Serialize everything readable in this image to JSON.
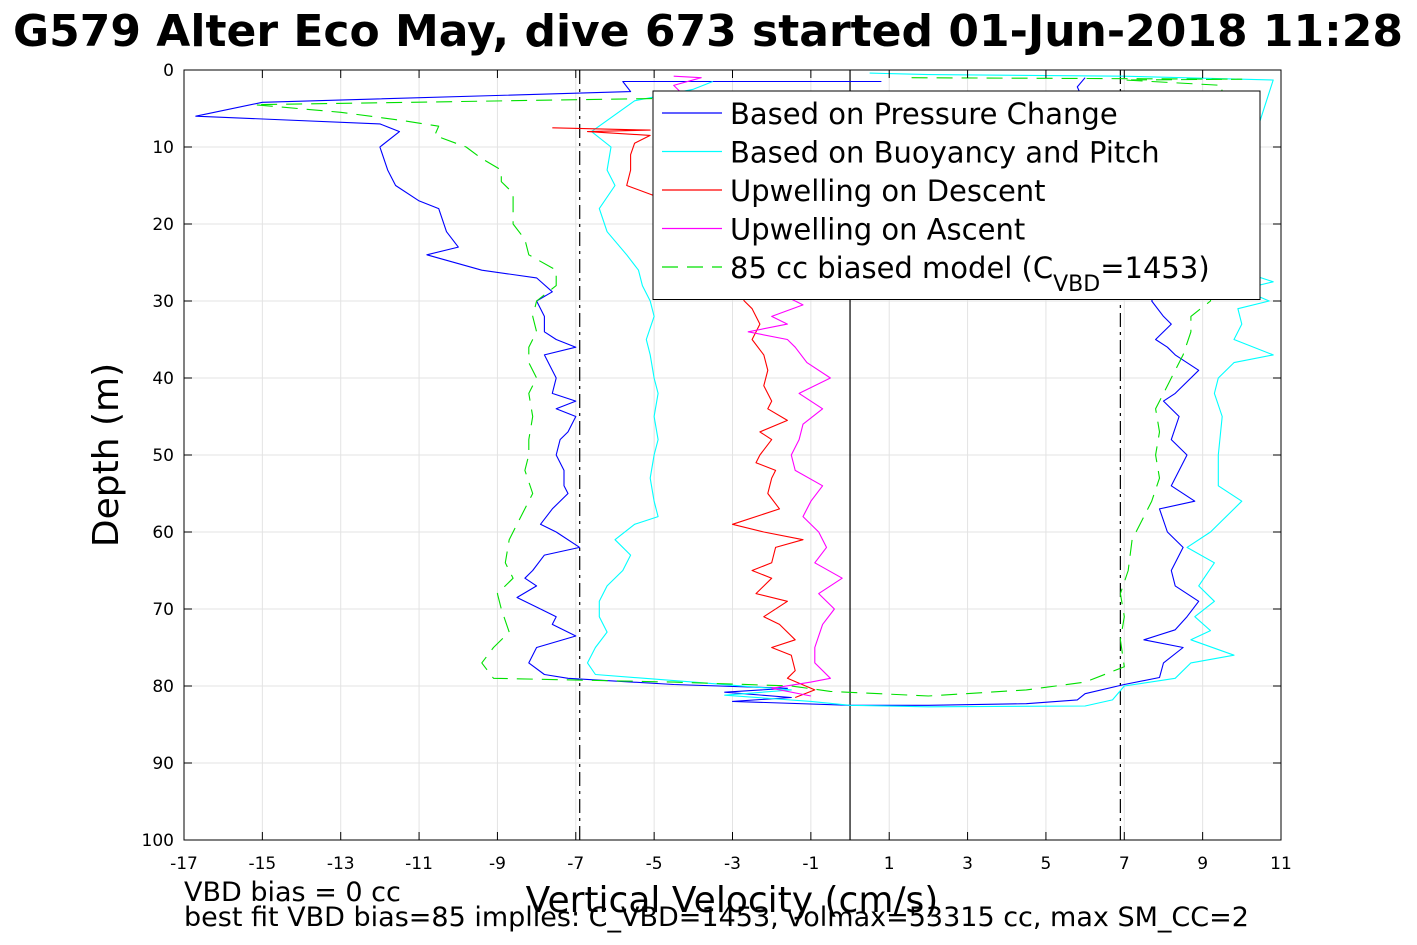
{
  "chart_data": {
    "type": "line",
    "title": "G579 Alter Eco May, dive 673 started 01-Jun-2018 11:28",
    "xlabel": "Vertical Velocity (cm/s)",
    "ylabel": "Depth (m)",
    "xlim": [
      -17,
      11
    ],
    "ylim": [
      0,
      100
    ],
    "y_reversed": true,
    "grid": true,
    "xticks": [
      -17,
      -15,
      -13,
      -11,
      -9,
      -7,
      -5,
      -3,
      -1,
      1,
      3,
      5,
      7,
      9,
      11
    ],
    "yticks": [
      0,
      10,
      20,
      30,
      40,
      50,
      60,
      70,
      80,
      90,
      100
    ],
    "legend_position": "top-right",
    "reference_lines": [
      {
        "x": -6.9,
        "style": "dashdot",
        "color": "#000000"
      },
      {
        "x": 0,
        "style": "solid",
        "color": "#000000"
      },
      {
        "x": 6.9,
        "style": "dashdot",
        "color": "#000000"
      }
    ],
    "series": [
      {
        "name": "Based on Pressure Change",
        "color": "#0000ff",
        "dash": "",
        "points": [
          [
            0.8,
            1.5
          ],
          [
            -5.8,
            1.5
          ],
          [
            -5.6,
            2.8
          ],
          [
            -15,
            4.2
          ],
          [
            -16.7,
            6
          ],
          [
            -12,
            7
          ],
          [
            -11.5,
            8
          ],
          [
            -12,
            10
          ],
          [
            -11.8,
            13
          ],
          [
            -11.6,
            15
          ],
          [
            -11,
            17
          ],
          [
            -10.5,
            18
          ],
          [
            -10.3,
            21
          ],
          [
            -10,
            23
          ],
          [
            -10.8,
            24
          ],
          [
            -9.4,
            26
          ],
          [
            -8,
            27
          ],
          [
            -7.6,
            28.8
          ],
          [
            -8,
            30
          ],
          [
            -7.8,
            32
          ],
          [
            -7.8,
            34
          ],
          [
            -7.5,
            35
          ],
          [
            -7,
            36
          ],
          [
            -7.8,
            37
          ],
          [
            -7.5,
            40
          ],
          [
            -7.6,
            42
          ],
          [
            -7,
            43
          ],
          [
            -7.5,
            44
          ],
          [
            -7,
            45
          ],
          [
            -7.2,
            47
          ],
          [
            -7.4,
            48
          ],
          [
            -7.5,
            50
          ],
          [
            -7.3,
            52
          ],
          [
            -7.3,
            54
          ],
          [
            -7.2,
            55
          ],
          [
            -7.6,
            57
          ],
          [
            -7.9,
            59
          ],
          [
            -7.5,
            60
          ],
          [
            -6.9,
            62
          ],
          [
            -7.8,
            63
          ],
          [
            -8.1,
            65
          ],
          [
            -8.3,
            66
          ],
          [
            -8.0,
            67
          ],
          [
            -8.5,
            68.5
          ],
          [
            -7.9,
            70
          ],
          [
            -7.5,
            71
          ],
          [
            -7.6,
            72
          ],
          [
            -7,
            73.5
          ],
          [
            -8,
            75
          ],
          [
            -8.2,
            77
          ],
          [
            -7.8,
            78.5
          ],
          [
            -7.2,
            79
          ],
          [
            -4.5,
            79.8
          ],
          [
            -1.6,
            80.3
          ],
          [
            -3.2,
            80.8
          ],
          [
            -1.5,
            81.5
          ],
          [
            -3,
            82
          ],
          [
            0,
            82.5
          ],
          [
            2,
            82.5
          ],
          [
            4.5,
            82.3
          ],
          [
            5.8,
            81.8
          ],
          [
            6,
            81
          ],
          [
            7,
            79.8
          ],
          [
            7.9,
            78.9
          ],
          [
            8,
            77
          ],
          [
            8.5,
            75
          ],
          [
            7.5,
            74
          ],
          [
            8.3,
            72.7
          ],
          [
            8.6,
            71
          ],
          [
            8.9,
            69
          ],
          [
            8.3,
            67
          ],
          [
            8.2,
            65
          ],
          [
            8.5,
            62
          ],
          [
            8.1,
            60
          ],
          [
            7.9,
            57
          ],
          [
            8.8,
            56
          ],
          [
            8.2,
            54
          ],
          [
            8.6,
            50
          ],
          [
            8.2,
            48
          ],
          [
            8.4,
            45
          ],
          [
            8.0,
            43
          ],
          [
            8.3,
            42
          ],
          [
            8.9,
            39
          ],
          [
            8.3,
            37
          ],
          [
            8.1,
            36
          ],
          [
            7.8,
            35
          ],
          [
            8.2,
            33
          ],
          [
            8.0,
            32
          ],
          [
            7.7,
            30
          ],
          [
            8,
            27
          ],
          [
            5.8,
            2.2
          ],
          [
            6,
            1
          ]
        ]
      },
      {
        "name": "Based on Buoyancy and Pitch",
        "color": "#00ffff",
        "dash": "",
        "points": [
          [
            -3.5,
            1.5
          ],
          [
            -4,
            2.5
          ],
          [
            -5.5,
            4
          ],
          [
            -6.6,
            8
          ],
          [
            -6.1,
            10
          ],
          [
            -6.2,
            13
          ],
          [
            -6.0,
            15
          ],
          [
            -6.4,
            18
          ],
          [
            -6.2,
            21
          ],
          [
            -5.7,
            24
          ],
          [
            -5.4,
            26
          ],
          [
            -5.3,
            28
          ],
          [
            -5.1,
            30
          ],
          [
            -5.0,
            32
          ],
          [
            -5.2,
            35
          ],
          [
            -5.1,
            37
          ],
          [
            -5.0,
            40
          ],
          [
            -4.9,
            42
          ],
          [
            -5.0,
            45
          ],
          [
            -4.9,
            48
          ],
          [
            -5.0,
            50
          ],
          [
            -5.1,
            53
          ],
          [
            -5.0,
            56
          ],
          [
            -4.9,
            58
          ],
          [
            -5.5,
            59
          ],
          [
            -6.0,
            61
          ],
          [
            -5.6,
            63
          ],
          [
            -5.8,
            65
          ],
          [
            -6.2,
            67
          ],
          [
            -6.4,
            69
          ],
          [
            -6.4,
            71
          ],
          [
            -6.2,
            73
          ],
          [
            -6.5,
            75
          ],
          [
            -6.7,
            77
          ],
          [
            -6.5,
            78.5
          ],
          [
            -4,
            79.5
          ],
          [
            -1.5,
            80.5
          ],
          [
            -3.2,
            81.2
          ],
          [
            -1,
            82
          ],
          [
            0,
            82.5
          ],
          [
            2,
            82.7
          ],
          [
            6,
            82.6
          ],
          [
            6.7,
            81.8
          ],
          [
            7.0,
            80
          ],
          [
            8.3,
            79
          ],
          [
            8.7,
            77
          ],
          [
            9.8,
            76
          ],
          [
            8.7,
            74
          ],
          [
            9.2,
            72.8
          ],
          [
            8.8,
            71
          ],
          [
            9.3,
            69
          ],
          [
            8.9,
            67
          ],
          [
            9.3,
            64
          ],
          [
            8.6,
            62
          ],
          [
            9.2,
            60
          ],
          [
            10.0,
            56
          ],
          [
            9.4,
            54
          ],
          [
            9.4,
            50
          ],
          [
            9.5,
            45
          ],
          [
            9.3,
            42
          ],
          [
            9.4,
            40
          ],
          [
            9.8,
            38
          ],
          [
            10.8,
            37
          ],
          [
            9.8,
            35
          ],
          [
            10.0,
            33
          ],
          [
            9.9,
            31
          ],
          [
            10.7,
            30
          ],
          [
            10,
            28.5
          ],
          [
            10.8,
            27.5
          ],
          [
            9.3,
            25
          ],
          [
            10.8,
            1.3
          ],
          [
            7,
            0.8
          ],
          [
            2,
            0.6
          ],
          [
            0.5,
            0.4
          ]
        ]
      },
      {
        "name": "Upwelling on Descent",
        "color": "#ff0000",
        "dash": "",
        "points": [
          [
            -7.6,
            7.5
          ],
          [
            -5.1,
            7.8
          ],
          [
            -6.7,
            8
          ],
          [
            -5.1,
            8.5
          ],
          [
            -5.5,
            9.5
          ],
          [
            -5.6,
            11
          ],
          [
            -5.6,
            13
          ],
          [
            -5.7,
            15
          ],
          [
            -4.9,
            16.5
          ],
          [
            -3.9,
            18
          ],
          [
            -2.7,
            30
          ],
          [
            -2.5,
            31
          ],
          [
            -2.3,
            33
          ],
          [
            -2.5,
            35
          ],
          [
            -2.2,
            37
          ],
          [
            -2.1,
            39
          ],
          [
            -2.2,
            41
          ],
          [
            -2.0,
            43
          ],
          [
            -2.1,
            44
          ],
          [
            -1.6,
            45.5
          ],
          [
            -2.3,
            47
          ],
          [
            -2.0,
            48
          ],
          [
            -2.3,
            50
          ],
          [
            -2.4,
            51
          ],
          [
            -1.9,
            52
          ],
          [
            -2.0,
            53
          ],
          [
            -2.1,
            55
          ],
          [
            -1.8,
            57
          ],
          [
            -3.0,
            59
          ],
          [
            -2.2,
            60
          ],
          [
            -1.2,
            61
          ],
          [
            -1.9,
            62
          ],
          [
            -2.0,
            64
          ],
          [
            -2.5,
            65
          ],
          [
            -2.0,
            66
          ],
          [
            -2.4,
            68
          ],
          [
            -1.6,
            69
          ],
          [
            -2.2,
            71
          ],
          [
            -1.8,
            72
          ],
          [
            -1.4,
            74
          ],
          [
            -2.0,
            75
          ],
          [
            -1.5,
            76
          ],
          [
            -1.4,
            78
          ],
          [
            -1.6,
            79
          ],
          [
            -0.9,
            80.5
          ],
          [
            -1.4,
            81.5
          ]
        ]
      },
      {
        "name": "Upwelling on Ascent",
        "color": "#ff00ff",
        "dash": "",
        "points": [
          [
            -1,
            81.3
          ],
          [
            -2.0,
            80.3
          ],
          [
            -1.0,
            79.5
          ],
          [
            -0.5,
            79
          ],
          [
            -0.9,
            77
          ],
          [
            -0.9,
            75
          ],
          [
            -0.7,
            72
          ],
          [
            -0.4,
            70
          ],
          [
            -0.8,
            68
          ],
          [
            -0.2,
            66
          ],
          [
            -0.9,
            64
          ],
          [
            -0.6,
            62
          ],
          [
            -0.8,
            60
          ],
          [
            -1.2,
            58
          ],
          [
            -1.0,
            56
          ],
          [
            -0.7,
            54
          ],
          [
            -1.4,
            52
          ],
          [
            -1.5,
            50
          ],
          [
            -1.3,
            48
          ],
          [
            -1.2,
            46
          ],
          [
            -0.7,
            44
          ],
          [
            -1.3,
            42
          ],
          [
            -0.5,
            40
          ],
          [
            -1.1,
            38
          ],
          [
            -1.4,
            36
          ],
          [
            -1.6,
            35
          ],
          [
            -2.6,
            34
          ],
          [
            -1.6,
            33
          ],
          [
            -2.0,
            32
          ],
          [
            -1.2,
            30.5
          ],
          [
            -1.8,
            29
          ],
          [
            -4.5,
            8
          ],
          [
            -3.5,
            7
          ],
          [
            -4.5,
            2
          ],
          [
            -3.8,
            1
          ],
          [
            -4.5,
            0.8
          ]
        ]
      },
      {
        "name": "85 cc biased model (C_VBD=1453)",
        "color": "#00e000",
        "dash": "16 9",
        "points": [
          [
            -2.5,
            3.5
          ],
          [
            -15.2,
            4.5
          ],
          [
            -13,
            5.5
          ],
          [
            -11.5,
            6.5
          ],
          [
            -10.5,
            7.3
          ],
          [
            -10.6,
            8.5
          ],
          [
            -9.8,
            10
          ],
          [
            -9.4,
            11.5
          ],
          [
            -8.9,
            13
          ],
          [
            -8.9,
            14.5
          ],
          [
            -8.6,
            16
          ],
          [
            -8.6,
            18
          ],
          [
            -8.6,
            20
          ],
          [
            -8.3,
            22
          ],
          [
            -8.2,
            24
          ],
          [
            -7.5,
            26
          ],
          [
            -7.5,
            28
          ],
          [
            -8.0,
            30
          ],
          [
            -8.1,
            32
          ],
          [
            -8.0,
            34
          ],
          [
            -8.2,
            36
          ],
          [
            -8.2,
            38
          ],
          [
            -8.0,
            40
          ],
          [
            -8.2,
            42
          ],
          [
            -8.1,
            45
          ],
          [
            -8.2,
            48
          ],
          [
            -8.2,
            50
          ],
          [
            -8.3,
            52
          ],
          [
            -8.1,
            55
          ],
          [
            -8.4,
            58
          ],
          [
            -8.7,
            61
          ],
          [
            -8.8,
            64
          ],
          [
            -8.6,
            66
          ],
          [
            -9.0,
            68
          ],
          [
            -8.9,
            70
          ],
          [
            -8.7,
            73
          ],
          [
            -9.1,
            75
          ],
          [
            -9.4,
            77
          ],
          [
            -9.1,
            79
          ],
          [
            -4.5,
            79.5
          ],
          [
            -1.5,
            80
          ],
          [
            -0.5,
            80.7
          ],
          [
            2,
            81.3
          ],
          [
            4.5,
            80.5
          ],
          [
            6.0,
            79.5
          ],
          [
            7.0,
            77.5
          ],
          [
            6.9,
            74
          ],
          [
            7.0,
            71
          ],
          [
            6.9,
            68
          ],
          [
            7.1,
            65
          ],
          [
            7.2,
            61
          ],
          [
            7.4,
            59
          ],
          [
            7.7,
            56
          ],
          [
            7.9,
            53
          ],
          [
            7.8,
            50
          ],
          [
            7.9,
            47
          ],
          [
            7.8,
            44
          ],
          [
            8.1,
            41
          ],
          [
            8.5,
            37
          ],
          [
            8.7,
            34
          ],
          [
            8.7,
            32
          ],
          [
            9.2,
            30
          ],
          [
            9.5,
            2
          ],
          [
            7.0,
            1.3
          ],
          [
            10.0,
            1.2
          ],
          [
            1.5,
            1
          ]
        ]
      }
    ]
  },
  "notes": {
    "line1": "VBD bias = 0 cc",
    "line2": "best fit VBD bias=85 implies: C_VBD=1453, volmax=53315 cc, max SM_CC=2"
  }
}
